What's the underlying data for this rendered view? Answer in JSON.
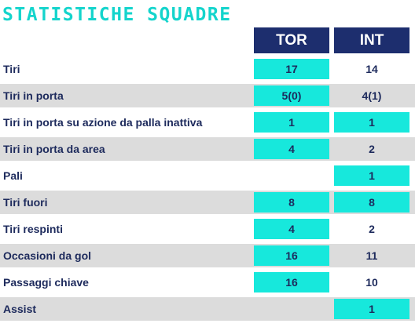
{
  "title": "STATISTICHE SQUADRE",
  "teams": {
    "home": "TOR",
    "away": "INT"
  },
  "colors": {
    "accent": "#17e8dc",
    "header_bg": "#1d2e6e",
    "text": "#1d2a5c",
    "title": "#14d4cc",
    "row_shade": "#dcdcdc"
  },
  "rows": [
    {
      "label": "Tiri",
      "home": "17",
      "away": "14",
      "home_highlight": true,
      "away_highlight": false
    },
    {
      "label": "Tiri in porta",
      "home": "5(0)",
      "away": "4(1)",
      "home_highlight": true,
      "away_highlight": false
    },
    {
      "label": "Tiri in porta su azione da palla inattiva",
      "home": "1",
      "away": "1",
      "home_highlight": true,
      "away_highlight": true
    },
    {
      "label": "Tiri in porta da area",
      "home": "4",
      "away": "2",
      "home_highlight": true,
      "away_highlight": false
    },
    {
      "label": "Pali",
      "home": "",
      "away": "1",
      "home_highlight": false,
      "away_highlight": true
    },
    {
      "label": "Tiri fuori",
      "home": "8",
      "away": "8",
      "home_highlight": true,
      "away_highlight": true
    },
    {
      "label": "Tiri respinti",
      "home": "4",
      "away": "2",
      "home_highlight": true,
      "away_highlight": false
    },
    {
      "label": "Occasioni da gol",
      "home": "16",
      "away": "11",
      "home_highlight": true,
      "away_highlight": false
    },
    {
      "label": "Passaggi chiave",
      "home": "16",
      "away": "10",
      "home_highlight": true,
      "away_highlight": false
    },
    {
      "label": "Assist",
      "home": "",
      "away": "1",
      "home_highlight": false,
      "away_highlight": true
    }
  ]
}
